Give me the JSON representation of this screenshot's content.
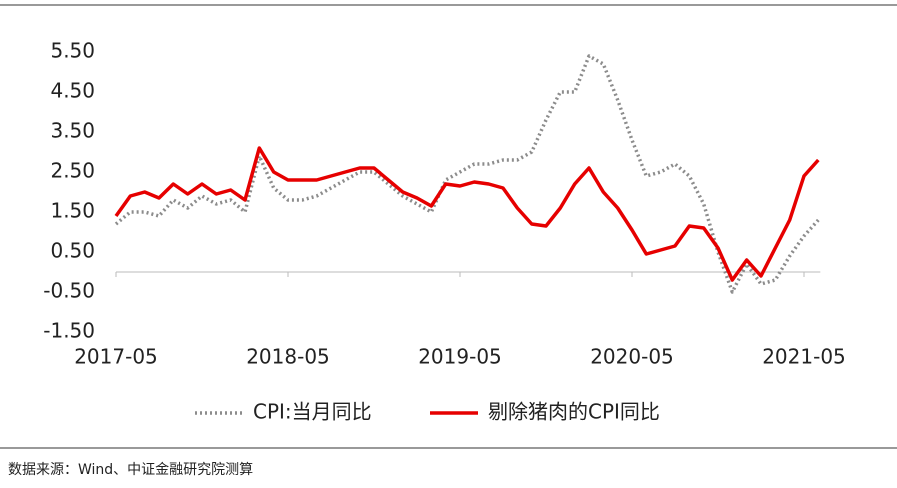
{
  "chart_data": {
    "type": "line",
    "categories": [
      "2017-05",
      null,
      null,
      null,
      null,
      null,
      null,
      null,
      null,
      null,
      null,
      null,
      "2018-05",
      null,
      null,
      null,
      null,
      null,
      null,
      null,
      null,
      null,
      null,
      null,
      "2019-05",
      null,
      null,
      null,
      null,
      null,
      null,
      null,
      null,
      null,
      null,
      null,
      "2020-05",
      null,
      null,
      null,
      null,
      null,
      null,
      null,
      null,
      null,
      null,
      null,
      "2021-05",
      null
    ],
    "series": [
      {
        "name": "CPI:当月同比",
        "color": "#8c8c8c",
        "dash": true,
        "values": [
          1.2,
          1.5,
          1.5,
          1.4,
          1.8,
          1.6,
          1.9,
          1.7,
          1.8,
          1.5,
          2.9,
          2.1,
          1.8,
          1.8,
          1.9,
          2.1,
          2.3,
          2.5,
          2.5,
          2.2,
          1.9,
          1.7,
          1.5,
          2.3,
          2.5,
          2.7,
          2.7,
          2.8,
          2.8,
          3.0,
          3.8,
          4.5,
          4.5,
          5.4,
          5.2,
          4.3,
          3.3,
          2.4,
          2.5,
          2.7,
          2.4,
          1.7,
          0.5,
          -0.5,
          0.2,
          -0.3,
          -0.2,
          0.4,
          0.9,
          1.3
        ]
      },
      {
        "name": "剔除猪肉的CPI同比",
        "color": "#e60000",
        "dash": false,
        "values": [
          1.4,
          1.9,
          2.0,
          1.85,
          2.2,
          1.95,
          2.2,
          1.95,
          2.05,
          1.8,
          3.1,
          2.5,
          2.3,
          2.3,
          2.3,
          2.4,
          2.5,
          2.6,
          2.6,
          2.3,
          2.0,
          1.85,
          1.65,
          2.2,
          2.15,
          2.25,
          2.2,
          2.1,
          1.6,
          1.2,
          1.15,
          1.6,
          2.2,
          2.6,
          2.0,
          1.6,
          1.05,
          0.45,
          0.55,
          0.65,
          1.15,
          1.1,
          0.6,
          -0.2,
          0.3,
          -0.1,
          0.6,
          1.3,
          2.4,
          2.8
        ]
      }
    ],
    "ylim": [
      -1.5,
      5.5
    ],
    "yticks": [
      {
        "value": 5.5,
        "label": "5.50"
      },
      {
        "value": 4.5,
        "label": "4.50"
      },
      {
        "value": 3.5,
        "label": "3.50"
      },
      {
        "value": 2.5,
        "label": "2.50"
      },
      {
        "value": 1.5,
        "label": "1.50"
      },
      {
        "value": 0.5,
        "label": "0.50"
      },
      {
        "value": -0.5,
        "label": "-0.50"
      },
      {
        "value": -1.5,
        "label": "-1.50"
      }
    ],
    "source": "数据来源：Wind、中证金融研究院测算"
  }
}
